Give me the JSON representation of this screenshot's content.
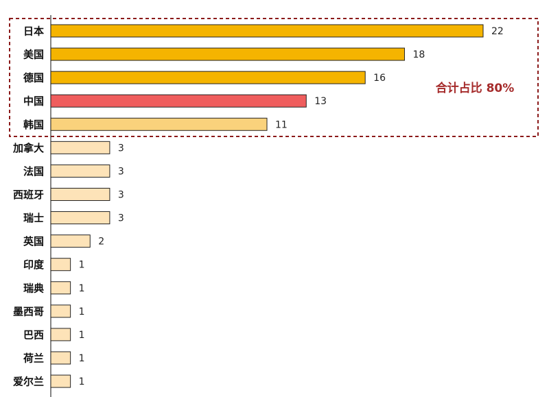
{
  "chart_data": {
    "type": "bar",
    "orientation": "horizontal",
    "categories": [
      "日本",
      "美国",
      "德国",
      "中国",
      "韩国",
      "加拿大",
      "法国",
      "西班牙",
      "瑞士",
      "英国",
      "印度",
      "瑞典",
      "墨西哥",
      "巴西",
      "荷兰",
      "爱尔兰"
    ],
    "values": [
      22,
      18,
      16,
      13,
      11,
      3,
      3,
      3,
      3,
      2,
      1,
      1,
      1,
      1,
      1,
      1
    ],
    "colors": [
      "#f5b400",
      "#f5b400",
      "#f5b400",
      "#ef5d5d",
      "#fad27c",
      "#fde3b8",
      "#fde3b8",
      "#fde3b8",
      "#fde3b8",
      "#fde3b8",
      "#fde3b8",
      "#fde3b8",
      "#fde3b8",
      "#fde3b8",
      "#fde3b8",
      "#fde3b8"
    ],
    "annotation": "合计占比 80%"
  }
}
